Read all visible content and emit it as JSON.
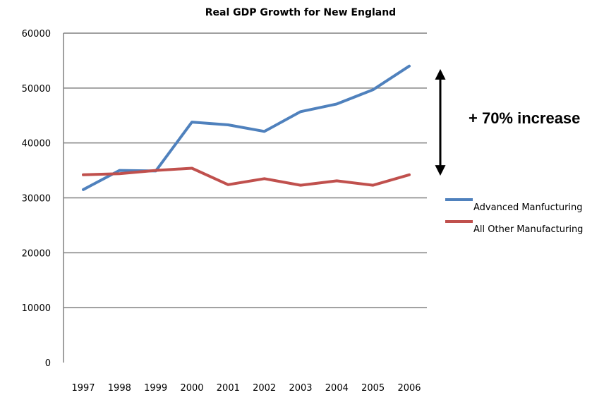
{
  "chart_data": {
    "type": "line",
    "title": "Real GDP Growth for New England",
    "xlabel": "",
    "ylabel": "",
    "categories": [
      "1997",
      "1998",
      "1999",
      "2000",
      "2001",
      "2002",
      "2003",
      "2004",
      "2005",
      "2006"
    ],
    "ylim": [
      0,
      60000
    ],
    "yticks": [
      "0",
      "10000",
      "20000",
      "30000",
      "40000",
      "50000",
      "60000"
    ],
    "grid": true,
    "legend_position": "right",
    "series": [
      {
        "name": "Advanced Manfucturing",
        "color": "#4F81BD",
        "values": [
          31500,
          35000,
          34900,
          43800,
          43300,
          42100,
          45700,
          47100,
          49700,
          54000
        ]
      },
      {
        "name": "All Other Manufacturing",
        "color": "#C0504D",
        "values": [
          34200,
          34400,
          35000,
          35400,
          32400,
          33500,
          32300,
          33100,
          32300,
          34200
        ]
      }
    ],
    "annotation": {
      "text": "+ 70% increase",
      "arrow": "double-headed vertical",
      "from_value": 35000,
      "to_value": 52500
    }
  }
}
